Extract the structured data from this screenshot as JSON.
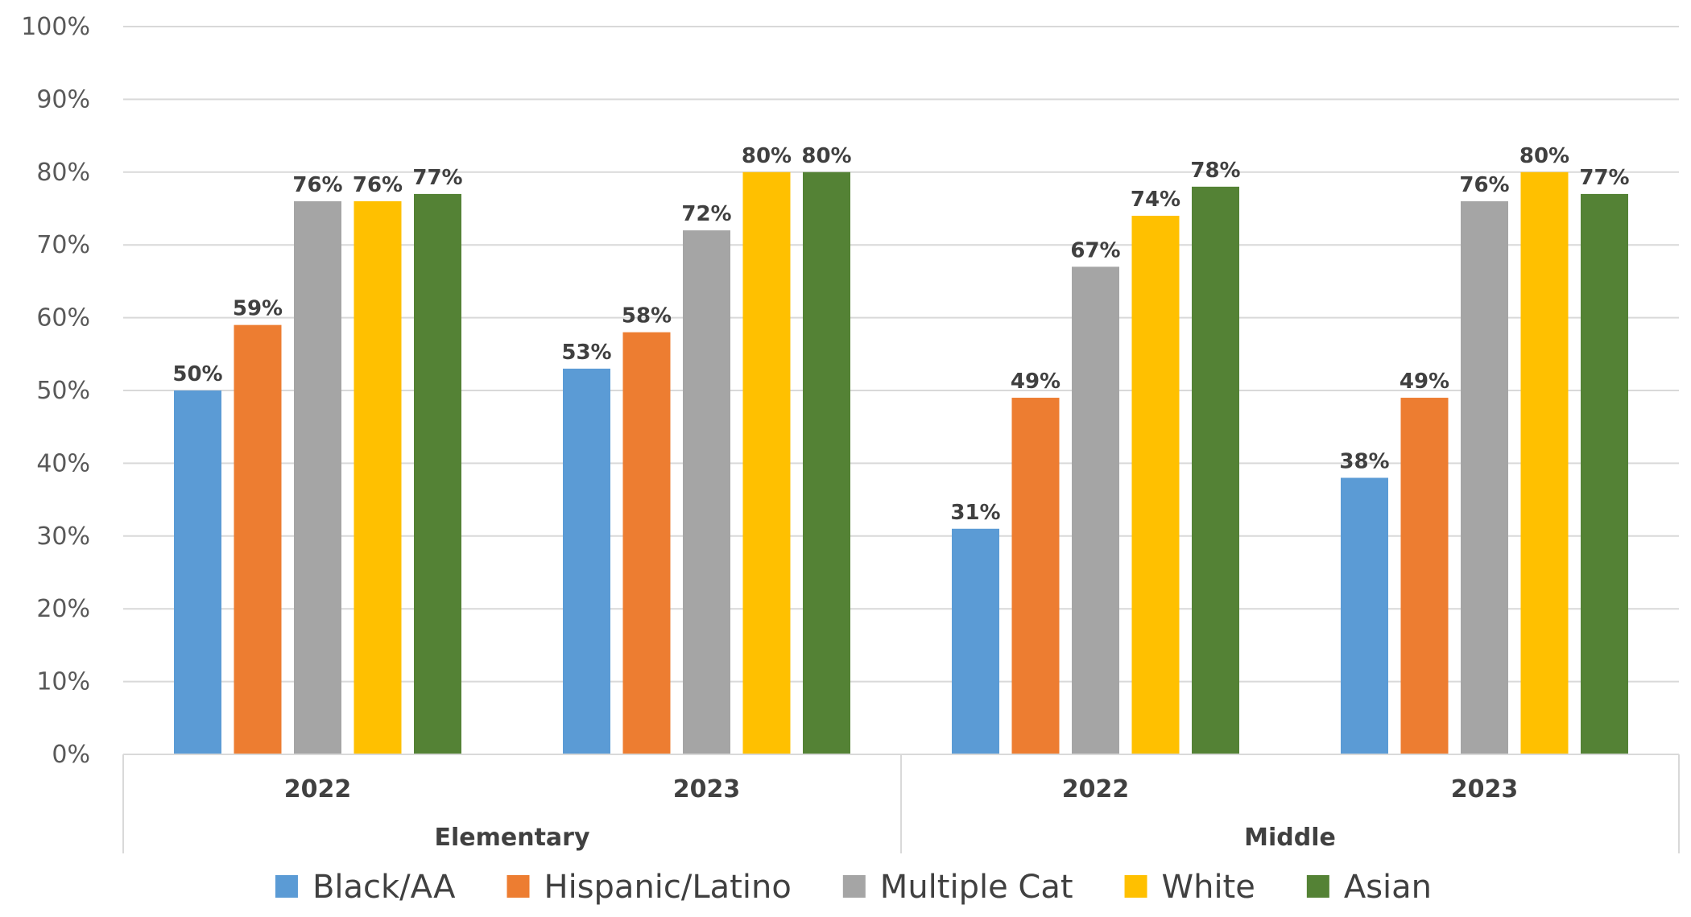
{
  "chart_data": {
    "type": "bar",
    "title": "",
    "xlabel": "",
    "ylabel": "",
    "ylim": [
      0,
      100
    ],
    "y_ticks": [
      "0%",
      "10%",
      "20%",
      "30%",
      "40%",
      "50%",
      "60%",
      "70%",
      "80%",
      "90%",
      "100%"
    ],
    "grid": true,
    "legend_position": "bottom",
    "groups": [
      {
        "label": "Elementary",
        "categories": [
          "2022",
          "2023"
        ]
      },
      {
        "label": "Middle",
        "categories": [
          "2022",
          "2023"
        ]
      }
    ],
    "categories": [
      "2022",
      "2023",
      "2022",
      "2023"
    ],
    "series": [
      {
        "name": "Black/AA",
        "color": "#5B9BD5",
        "values": [
          50,
          53,
          31,
          38
        ]
      },
      {
        "name": "Hispanic/Latino",
        "color": "#ED7D31",
        "values": [
          59,
          58,
          49,
          49
        ]
      },
      {
        "name": "Multiple Cat",
        "color": "#A5A5A5",
        "values": [
          76,
          72,
          67,
          76
        ]
      },
      {
        "name": "White",
        "color": "#FFC000",
        "values": [
          76,
          80,
          74,
          80
        ]
      },
      {
        "name": "Asian",
        "color": "#548235",
        "values": [
          77,
          80,
          78,
          77
        ]
      }
    ]
  }
}
